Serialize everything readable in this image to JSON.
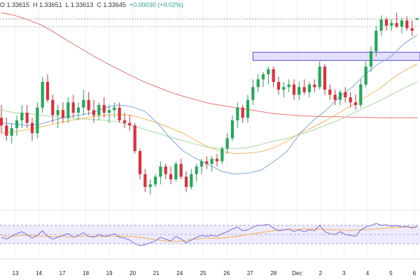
{
  "header": {
    "open": "O 1.33615",
    "high": "H 1.33651",
    "low": "L 1.33613",
    "close": "C 1.33645",
    "change": "+0.00030 (+0.02%)"
  },
  "chart_data": {
    "type": "candlestick",
    "x_tick_labels": [
      "13",
      "14",
      "17",
      "18",
      "19",
      "20",
      "21",
      "24",
      "25",
      "26",
      "27",
      "28",
      "Dec",
      "2",
      "3",
      "4",
      "5",
      "6"
    ],
    "candles": [
      [
        1.317,
        1.3195,
        1.314,
        1.3155
      ],
      [
        1.3155,
        1.317,
        1.3125,
        1.3135
      ],
      [
        1.3135,
        1.316,
        1.312,
        1.315
      ],
      [
        1.315,
        1.3175,
        1.3135,
        1.3165
      ],
      [
        1.3165,
        1.3195,
        1.315,
        1.318
      ],
      [
        1.318,
        1.3195,
        1.315,
        1.316
      ],
      [
        1.316,
        1.317,
        1.3125,
        1.314
      ],
      [
        1.314,
        1.32,
        1.313,
        1.319
      ],
      [
        1.319,
        1.325,
        1.318,
        1.324
      ],
      [
        1.324,
        1.3255,
        1.32,
        1.3205
      ],
      [
        1.3205,
        1.3215,
        1.316,
        1.3175
      ],
      [
        1.3175,
        1.3195,
        1.315,
        1.3185
      ],
      [
        1.3185,
        1.32,
        1.316,
        1.317
      ],
      [
        1.317,
        1.321,
        1.316,
        1.32
      ],
      [
        1.32,
        1.3215,
        1.317,
        1.318
      ],
      [
        1.318,
        1.32,
        1.3165,
        1.319
      ],
      [
        1.319,
        1.3225,
        1.3175,
        1.3205
      ],
      [
        1.3205,
        1.322,
        1.3175,
        1.3185
      ],
      [
        1.3185,
        1.3205,
        1.316,
        1.3175
      ],
      [
        1.3175,
        1.32,
        1.3165,
        1.3195
      ],
      [
        1.3195,
        1.321,
        1.317,
        1.318
      ],
      [
        1.318,
        1.3195,
        1.316,
        1.3185
      ],
      [
        1.3185,
        1.32,
        1.317,
        1.319
      ],
      [
        1.319,
        1.32,
        1.316,
        1.3165
      ],
      [
        1.3165,
        1.318,
        1.315,
        1.316
      ],
      [
        1.316,
        1.3175,
        1.3145,
        1.3155
      ],
      [
        1.3155,
        1.316,
        1.31,
        1.3105
      ],
      [
        1.3105,
        1.311,
        1.305,
        1.306
      ],
      [
        1.306,
        1.307,
        1.3025,
        1.3035
      ],
      [
        1.3035,
        1.305,
        1.302,
        1.304
      ],
      [
        1.304,
        1.306,
        1.3035,
        1.3055
      ],
      [
        1.3055,
        1.3085,
        1.304,
        1.3075
      ],
      [
        1.3075,
        1.308,
        1.305,
        1.306
      ],
      [
        1.306,
        1.3075,
        1.304,
        1.305
      ],
      [
        1.305,
        1.3085,
        1.3045,
        1.308
      ],
      [
        1.308,
        1.309,
        1.305,
        1.3055
      ],
      [
        1.3055,
        1.3065,
        1.3025,
        1.3035
      ],
      [
        1.3035,
        1.307,
        1.303,
        1.306
      ],
      [
        1.306,
        1.308,
        1.3045,
        1.3075
      ],
      [
        1.3075,
        1.309,
        1.306,
        1.3085
      ],
      [
        1.3085,
        1.3095,
        1.307,
        1.308
      ],
      [
        1.308,
        1.3095,
        1.3065,
        1.309
      ],
      [
        1.309,
        1.31,
        1.3075,
        1.3085
      ],
      [
        1.3085,
        1.3115,
        1.308,
        1.311
      ],
      [
        1.311,
        1.314,
        1.31,
        1.313
      ],
      [
        1.313,
        1.3175,
        1.3125,
        1.3165
      ],
      [
        1.3165,
        1.32,
        1.315,
        1.319
      ],
      [
        1.319,
        1.3195,
        1.316,
        1.317
      ],
      [
        1.317,
        1.3215,
        1.316,
        1.3205
      ],
      [
        1.3205,
        1.3245,
        1.3195,
        1.323
      ],
      [
        1.323,
        1.3255,
        1.322,
        1.3245
      ],
      [
        1.3245,
        1.326,
        1.323,
        1.3255
      ],
      [
        1.3255,
        1.327,
        1.3235,
        1.3265
      ],
      [
        1.3265,
        1.327,
        1.323,
        1.324
      ],
      [
        1.324,
        1.325,
        1.3215,
        1.3225
      ],
      [
        1.3225,
        1.324,
        1.321,
        1.323
      ],
      [
        1.323,
        1.3245,
        1.322,
        1.3235
      ],
      [
        1.3235,
        1.3245,
        1.3205,
        1.3215
      ],
      [
        1.3215,
        1.324,
        1.3205,
        1.323
      ],
      [
        1.323,
        1.3245,
        1.3215,
        1.322
      ],
      [
        1.322,
        1.324,
        1.321,
        1.3235
      ],
      [
        1.3235,
        1.3245,
        1.322,
        1.323
      ],
      [
        1.323,
        1.328,
        1.3225,
        1.327
      ],
      [
        1.327,
        1.3275,
        1.3215,
        1.3225
      ],
      [
        1.3225,
        1.3235,
        1.3205,
        1.3215
      ],
      [
        1.3215,
        1.3225,
        1.3195,
        1.3205
      ],
      [
        1.3205,
        1.3225,
        1.3195,
        1.322
      ],
      [
        1.322,
        1.323,
        1.32,
        1.321
      ],
      [
        1.321,
        1.322,
        1.319,
        1.32
      ],
      [
        1.32,
        1.3215,
        1.3185,
        1.3195
      ],
      [
        1.3195,
        1.3245,
        1.319,
        1.3235
      ],
      [
        1.3235,
        1.328,
        1.323,
        1.327
      ],
      [
        1.327,
        1.331,
        1.326,
        1.33
      ],
      [
        1.33,
        1.335,
        1.329,
        1.334
      ],
      [
        1.334,
        1.337,
        1.333,
        1.3362
      ],
      [
        1.3362,
        1.3366,
        1.334,
        1.335
      ],
      [
        1.335,
        1.3362,
        1.334,
        1.3355
      ],
      [
        1.3355,
        1.3375,
        1.3345,
        1.3348
      ],
      [
        1.3348,
        1.3365,
        1.3335,
        1.336
      ],
      [
        1.336,
        1.3368,
        1.334,
        1.3345
      ],
      [
        1.3345,
        1.336,
        1.333,
        1.334
      ],
      [
        1.33615,
        1.33651,
        1.33613,
        1.33645
      ]
    ],
    "sma_fast_values": [
      1.316,
      1.3158,
      1.3155,
      1.3158,
      1.3165,
      1.3172,
      1.3175,
      1.318,
      1.319,
      1.3195,
      1.3192,
      1.3183,
      1.316,
      1.313,
      1.3105,
      1.309,
      1.3078,
      1.3065,
      1.306,
      1.3062,
      1.3068,
      1.3085,
      1.3105,
      1.314,
      1.3165,
      1.3185,
      1.321,
      1.323,
      1.3255,
      1.3275,
      1.329,
      1.3315,
      1.3332
    ],
    "sma_mid_values": [
      1.314,
      1.3143,
      1.3147,
      1.3152,
      1.3158,
      1.3163,
      1.3168,
      1.3172,
      1.3175,
      1.3176,
      1.3175,
      1.3168,
      1.316,
      1.315,
      1.314,
      1.3125,
      1.3112,
      1.3104,
      1.31,
      1.3101,
      1.3104,
      1.3112,
      1.3125,
      1.314,
      1.3152,
      1.3165,
      1.318,
      1.3195,
      1.321,
      1.3225,
      1.3245,
      1.3262,
      1.3275
    ],
    "sma_slow_values": [
      1.3185,
      1.318,
      1.3178,
      1.3175,
      1.3172,
      1.317,
      1.3168,
      1.3167,
      1.3165,
      1.3162,
      1.3155,
      1.3148,
      1.314,
      1.3132,
      1.3125,
      1.3118,
      1.3112,
      1.311,
      1.311,
      1.3112,
      1.3118,
      1.3125,
      1.313,
      1.3138,
      1.3146,
      1.3156,
      1.3166,
      1.3178,
      1.319,
      1.3202,
      1.3215,
      1.3228,
      1.324
    ],
    "sma_long_values": [
      1.3375,
      1.337,
      1.3362,
      1.3352,
      1.3338,
      1.3322,
      1.3307,
      1.3292,
      1.3278,
      1.3265,
      1.3252,
      1.324,
      1.323,
      1.322,
      1.3212,
      1.3205,
      1.3198,
      1.3194,
      1.319,
      1.3186,
      1.3182,
      1.3178,
      1.3176,
      1.3174,
      1.3173,
      1.3172,
      1.3172,
      1.3171,
      1.3171,
      1.317,
      1.317,
      1.317,
      1.317
    ],
    "resistance_levels": [
      1.3363,
      1.3348
    ],
    "zone": {
      "start_candle": 49,
      "low": 1.3282,
      "high": 1.3298
    },
    "rsi_values": [
      44,
      40,
      46,
      52,
      56,
      50,
      42,
      48,
      58,
      46,
      40,
      44,
      48,
      52,
      44,
      48,
      54,
      46,
      44,
      50,
      46,
      48,
      52,
      44,
      42,
      38,
      30,
      26,
      28,
      32,
      36,
      44,
      40,
      36,
      46,
      40,
      32,
      38,
      44,
      48,
      46,
      48,
      46,
      52,
      56,
      62,
      66,
      58,
      60,
      66,
      70,
      70,
      72,
      64,
      58,
      60,
      62,
      56,
      60,
      56,
      60,
      58,
      70,
      56,
      52,
      50,
      56,
      50,
      48,
      46,
      60,
      66,
      70,
      74,
      70,
      71,
      68,
      70,
      66,
      68,
      64,
      68
    ],
    "rsi_ma_values": [
      48,
      46,
      46,
      48,
      48,
      48,
      47,
      46,
      46,
      46,
      46,
      45,
      45,
      46,
      46,
      46,
      46,
      46,
      46,
      46,
      46,
      46,
      45,
      44,
      42,
      40,
      38,
      36,
      35,
      35,
      36,
      38,
      40,
      41,
      42,
      42,
      42,
      43,
      44,
      46,
      48,
      50,
      52,
      54,
      56,
      58,
      60,
      60,
      61,
      61,
      62,
      62,
      62,
      61,
      61,
      60,
      60,
      59,
      59,
      60,
      60,
      61,
      62,
      63,
      64,
      65,
      66,
      66,
      66,
      65
    ]
  }
}
